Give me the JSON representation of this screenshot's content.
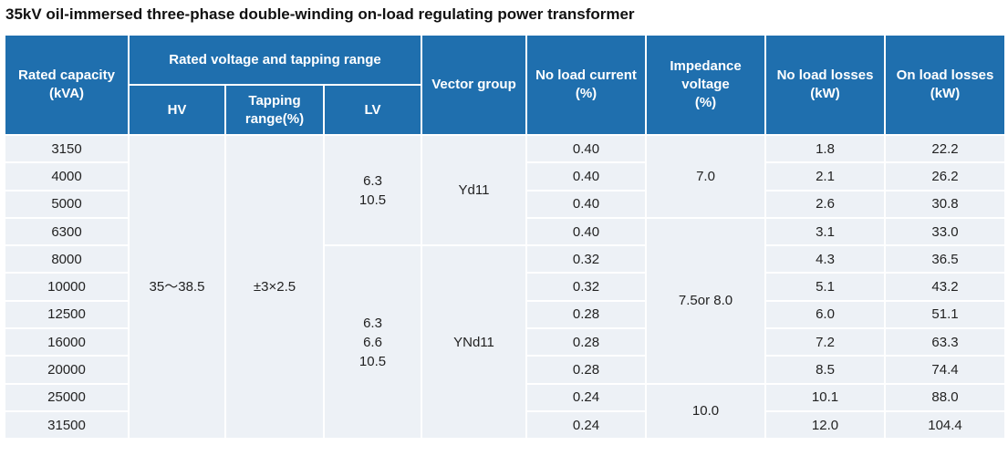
{
  "header": {
    "title": "35kV oil-immersed three-phase double-winding on-load regulating power transformer"
  },
  "table": {
    "columns": [
      "Rated capacity\n(kVA)",
      "Rated voltage and tapping range",
      "Vector group",
      "No load current\n(%)",
      "Impedance\nvoltage\n(%)",
      "No load losses\n(kW)",
      "On load losses\n(kW)"
    ],
    "subcolumns": [
      "HV",
      "Tapping\nrange(%)",
      "LV"
    ],
    "capacity": [
      "3150",
      "4000",
      "5000",
      "6300",
      "8000",
      "10000",
      "12500",
      "16000",
      "20000",
      "25000",
      "31500"
    ],
    "hv": "35～38.5",
    "tapping": "±3×2.5",
    "lv": [
      "6.3\n10.5",
      "6.3\n6.6\n10.5"
    ],
    "vector_group": [
      "Yd11",
      "YNd11"
    ],
    "no_load_current": [
      "0.40",
      "0.40",
      "0.40",
      "0.40",
      "0.32",
      "0.32",
      "0.28",
      "0.28",
      "0.28",
      "0.24",
      "0.24"
    ],
    "impedance": [
      "7.0",
      "7.5or 8.0",
      "10.0"
    ],
    "no_load_losses": [
      "1.8",
      "2.1",
      "2.6",
      "3.1",
      "4.3",
      "5.1",
      "6.0",
      "7.2",
      "8.5",
      "10.1",
      "12.0"
    ],
    "on_load_losses": [
      "22.2",
      "26.2",
      "30.8",
      "33.0",
      "36.5",
      "43.2",
      "51.1",
      "63.3",
      "74.4",
      "88.0",
      "104.4"
    ]
  }
}
